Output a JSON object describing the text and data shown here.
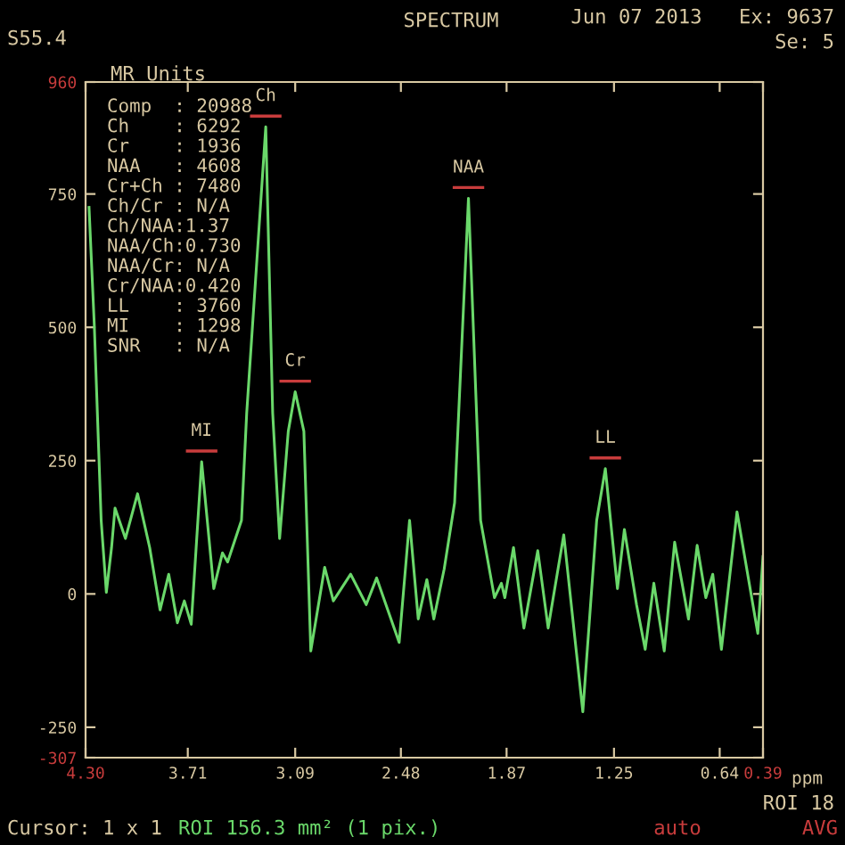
{
  "chart_data": {
    "type": "line",
    "title": "SPECTRUM",
    "xlabel": "ppm",
    "ylabel": "MR Units",
    "x": [
      4.28,
      4.25,
      4.21,
      4.18,
      4.15,
      4.13,
      4.07,
      4.0,
      3.93,
      3.87,
      3.82,
      3.77,
      3.73,
      3.69,
      3.63,
      3.56,
      3.51,
      3.48,
      3.4,
      3.37,
      3.26,
      3.22,
      3.18,
      3.13,
      3.09,
      3.04,
      3.0,
      2.92,
      2.87,
      2.77,
      2.68,
      2.62,
      2.49,
      2.43,
      2.38,
      2.33,
      2.29,
      2.23,
      2.17,
      2.09,
      2.02,
      1.94,
      1.9,
      1.88,
      1.83,
      1.77,
      1.69,
      1.63,
      1.54,
      1.43,
      1.35,
      1.3,
      1.23,
      1.19,
      1.12,
      1.07,
      1.02,
      0.96,
      0.9,
      0.82,
      0.77,
      0.72,
      0.68,
      0.63,
      0.54,
      0.42,
      0.39
    ],
    "series": [
      {
        "color": "#6ad86a",
        "values": [
          725,
          507,
          138,
          3,
          87,
          161,
          104,
          188,
          87,
          -30,
          37,
          -54,
          -13,
          -57,
          248,
          10,
          77,
          60,
          138,
          339,
          876,
          339,
          104,
          305,
          379,
          305,
          -107,
          50,
          -13,
          37,
          -20,
          30,
          -91,
          138,
          -47,
          27,
          -47,
          47,
          171,
          742,
          138,
          -7,
          20,
          -7,
          87,
          -64,
          81,
          -64,
          111,
          -221,
          138,
          235,
          10,
          121,
          -20,
          -104,
          20,
          -107,
          97,
          -47,
          91,
          -7,
          37,
          -104,
          154,
          -74,
          70
        ]
      }
    ],
    "xlim": [
      4.3,
      0.39
    ],
    "xticks": [
      {
        "value": 4.3,
        "label": "4.30"
      },
      3.71,
      3.09,
      2.48,
      1.87,
      1.25,
      0.64,
      0.39
    ],
    "ylim": [
      -307,
      960
    ],
    "yticks": [
      960,
      750,
      500,
      250,
      0,
      -250,
      -307
    ],
    "grid": false,
    "legend": false,
    "marker": "none",
    "line_style": "solid",
    "annotations": [
      "S55.4",
      "Jun 07 2013",
      "Ex: 9637",
      "Se: 5",
      "Comp  : 20988",
      "Ch    : 6292",
      "Cr    : 1936",
      "NAA   : 4608",
      "Cr+Ch : 7480",
      "Ch/Cr : N/A",
      "Ch/NAA:1.37",
      "NAA/Ch:0.730",
      "NAA/Cr: N/A",
      "Cr/NAA:0.420",
      "LL    : 3760",
      "MI    : 1298",
      "SNR   : N/A",
      "ROI 18",
      "Cursor: 1 x 1",
      "ROI 156.3 mm² (1 pix.)",
      "auto",
      "AVG",
      {
        "text": "Ch",
        "x": 3.26,
        "y": 876
      },
      {
        "text": "Cr",
        "x": 3.09,
        "y": 379
      },
      {
        "text": "NAA",
        "x": 2.09,
        "y": 742
      },
      {
        "text": "MI",
        "x": 3.63,
        "y": 248
      },
      {
        "text": "LL",
        "x": 1.3,
        "y": 235
      }
    ]
  }
}
